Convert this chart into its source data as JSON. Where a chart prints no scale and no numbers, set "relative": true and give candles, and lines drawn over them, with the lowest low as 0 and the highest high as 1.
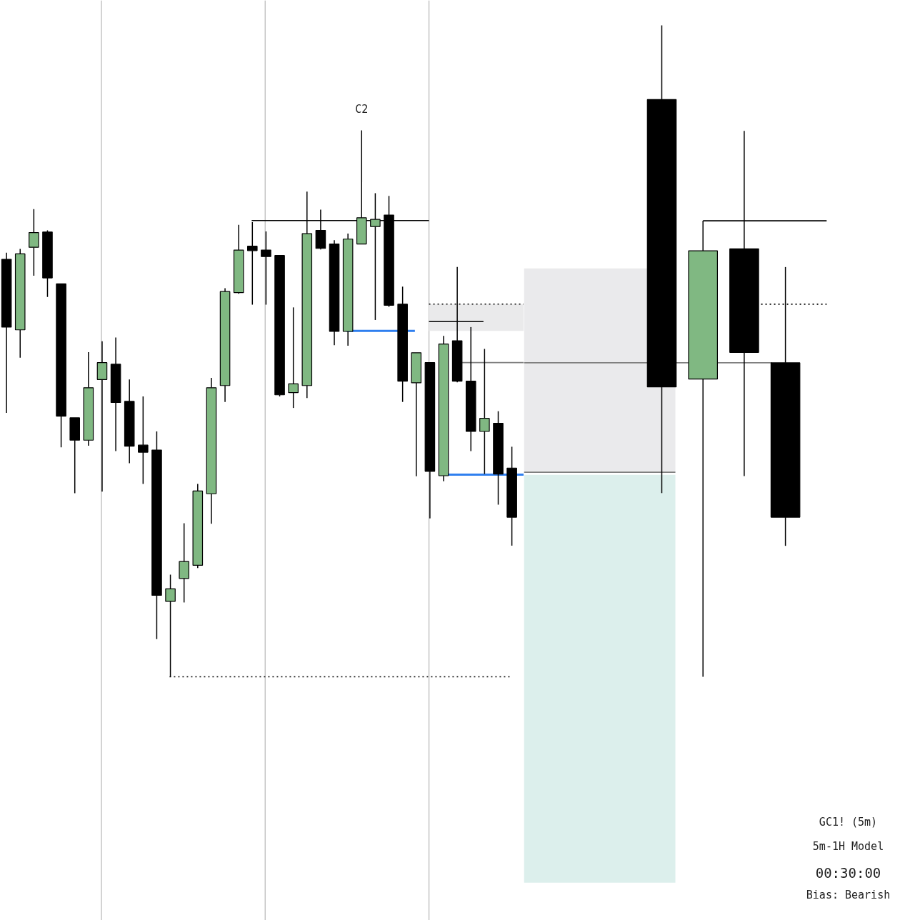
{
  "chart_data": [
    {
      "type": "candlestick",
      "relative": true,
      "categories": [
        null,
        null,
        null,
        null,
        null,
        null,
        null,
        null,
        null,
        null,
        null,
        null,
        null,
        null,
        null,
        null,
        null,
        null,
        null,
        null,
        null,
        null,
        null,
        null,
        null,
        null,
        null,
        null,
        null,
        null,
        null,
        null,
        null,
        null,
        null,
        null,
        null,
        null
      ],
      "ohlc": [
        [
          0.764,
          0.776,
          0.483,
          0.64
        ],
        [
          0.635,
          0.783,
          0.584,
          0.774
        ],
        [
          0.786,
          0.856,
          0.734,
          0.813
        ],
        [
          0.814,
          0.817,
          0.695,
          0.73
        ],
        [
          0.719,
          0.719,
          0.42,
          0.477
        ],
        [
          0.474,
          0.474,
          0.336,
          0.433
        ],
        [
          0.433,
          0.594,
          0.423,
          0.529
        ],
        [
          0.544,
          0.614,
          0.339,
          0.575
        ],
        [
          0.572,
          0.621,
          0.413,
          0.502
        ],
        [
          0.504,
          0.544,
          0.391,
          0.422
        ],
        [
          0.424,
          0.513,
          0.353,
          0.411
        ],
        [
          0.415,
          0.449,
          0.069,
          0.149
        ],
        [
          0.138,
          0.187,
          0,
          0.161
        ],
        [
          0.18,
          0.281,
          0.136,
          0.211
        ],
        [
          0.204,
          0.353,
          0.199,
          0.34
        ],
        [
          0.335,
          0.547,
          0.28,
          0.529
        ],
        [
          0.533,
          0.711,
          0.503,
          0.705
        ],
        [
          0.703,
          0.827,
          0.701,
          0.781
        ],
        [
          0.788,
          0.832,
          0.681,
          0.78
        ],
        [
          0.781,
          0.815,
          0.681,
          0.769
        ],
        [
          0.771,
          0.771,
          0.513,
          0.516
        ],
        [
          0.52,
          0.676,
          0.492,
          0.536
        ],
        [
          0.533,
          0.888,
          0.51,
          0.811
        ],
        [
          0.817,
          0.855,
          0.782,
          0.784
        ],
        [
          0.792,
          0.799,
          0.607,
          0.632
        ],
        [
          0.632,
          0.811,
          0.606,
          0.801
        ],
        [
          0.792,
          1,
          0.792,
          0.84
        ],
        [
          0.824,
          0.885,
          0.653,
          0.837
        ],
        [
          0.845,
          0.88,
          0.677,
          0.68
        ],
        [
          0.682,
          0.714,
          0.503,
          0.541
        ],
        [
          0.538,
          0.593,
          0.367,
          0.593
        ],
        [
          0.575,
          0.575,
          0.29,
          0.376
        ],
        [
          0.368,
          0.624,
          0.358,
          0.609
        ],
        [
          0.615,
          0.75,
          0.539,
          0.541
        ],
        [
          0.541,
          0.64,
          0.413,
          0.449
        ],
        [
          0.449,
          0.6,
          0.371,
          0.473
        ],
        [
          0.464,
          0.486,
          0.315,
          0.371
        ],
        [
          0.382,
          0.421,
          0.24,
          0.292
        ]
      ],
      "colors": [
        "#000000",
        "#80b882",
        "#80b882",
        "#000000",
        "#000000",
        "#000000",
        "#80b882",
        "#80b882",
        "#000000",
        "#000000",
        "#000000",
        "#000000",
        "#80b882",
        "#80b882",
        "#80b882",
        "#80b882",
        "#80b882",
        "#80b882",
        "#000000",
        "#000000",
        "#000000",
        "#80b882",
        "#80b882",
        "#000000",
        "#000000",
        "#80b882",
        "#80b882",
        "#80b882",
        "#000000",
        "#000000",
        "#80b882",
        "#000000",
        "#80b882",
        "#000000",
        "#000000",
        "#80b882",
        "#000000",
        "#000000"
      ],
      "ref_lines": [
        {
          "axis": "y",
          "value": 0.835,
          "color": "#000000",
          "line_style": "solid"
        },
        {
          "axis": "y",
          "value": 0.682,
          "color": "#000000",
          "line_style": "dotted"
        },
        {
          "axis": "y",
          "value": 0.65,
          "color": "#000000",
          "line_style": "solid"
        },
        {
          "axis": "y",
          "value": 0.633,
          "color": "#2f7fef",
          "line_style": "solid"
        },
        {
          "axis": "y",
          "value": 0.575,
          "color": "#808080",
          "line_style": "solid"
        },
        {
          "axis": "y",
          "value": 0.37,
          "color": "#2f7fef",
          "line_style": "solid"
        },
        {
          "axis": "y",
          "value": 0,
          "color": "#000000",
          "line_style": "dotted"
        }
      ],
      "bands": [
        {
          "axis": "y",
          "from": 0.633,
          "to": 0.682,
          "color": "#eaeaeb"
        }
      ],
      "annotations": [
        "C2"
      ],
      "grid": "x"
    },
    {
      "type": "candlestick",
      "relative": true,
      "categories": [
        null,
        null,
        null,
        null
      ],
      "ohlc": [
        [
          0.886,
          1,
          0.282,
          0.445
        ],
        [
          0.457,
          0.7,
          0,
          0.654
        ],
        [
          0.657,
          0.838,
          0.308,
          0.498
        ],
        [
          0.482,
          0.629,
          0.201,
          0.245
        ]
      ],
      "colors": [
        "#000000",
        "#80b882",
        "#000000",
        "#000000"
      ],
      "ref_lines": [
        {
          "axis": "y",
          "value": 0.7,
          "color": "#000000",
          "line_style": "solid"
        },
        {
          "axis": "y",
          "value": 0.572,
          "color": "#000000",
          "line_style": "dotted"
        },
        {
          "axis": "y",
          "value": 0.482,
          "color": "#808080",
          "line_style": "solid"
        },
        {
          "axis": "y",
          "value": 0.314,
          "color": "#808080",
          "line_style": "solid"
        }
      ],
      "bands": [
        {
          "axis": "y",
          "from": 0.314,
          "to": 0.627,
          "color": "#eaeaec"
        },
        {
          "axis": "y",
          "from": -0.316,
          "to": 0.31,
          "color": "#dcefec"
        }
      ],
      "annotations": [
        "GC1! (5m)",
        "5m-1H Model",
        "00:30:00",
        "Bias: Bearish"
      ]
    }
  ]
}
